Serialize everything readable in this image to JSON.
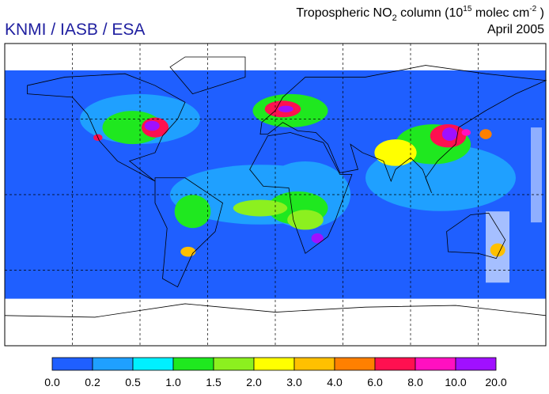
{
  "header": {
    "agency": "KNMI / IASB / ESA",
    "title": [
      "Tropospheric NO",
      "2",
      " column (10",
      "15",
      " molec cm",
      "-2",
      " )"
    ],
    "date": "April 2005"
  },
  "colorbar": {
    "ticks": [
      {
        "value": 0,
        "label": "0.0"
      },
      {
        "value": 0.2,
        "label": "0.2"
      },
      {
        "value": 0.5,
        "label": "0.5"
      },
      {
        "value": 1,
        "label": "1.0"
      },
      {
        "value": 1.5,
        "label": "1.5"
      },
      {
        "value": 2,
        "label": "2.0"
      },
      {
        "value": 3,
        "label": "3.0"
      },
      {
        "value": 4,
        "label": "4.0"
      },
      {
        "value": 6,
        "label": "6.0"
      },
      {
        "value": 8,
        "label": "8.0"
      },
      {
        "value": 10,
        "label": "10.0"
      },
      {
        "value": 20,
        "label": "20.0"
      }
    ],
    "colors": [
      "#1f5fff",
      "#1fa0ff",
      "#00f0ff",
      "#1fe81f",
      "#8cf01f",
      "#ffff00",
      "#ffc000",
      "#ff8000",
      "#ff1050",
      "#ff10c0",
      "#a010ff"
    ]
  }
}
